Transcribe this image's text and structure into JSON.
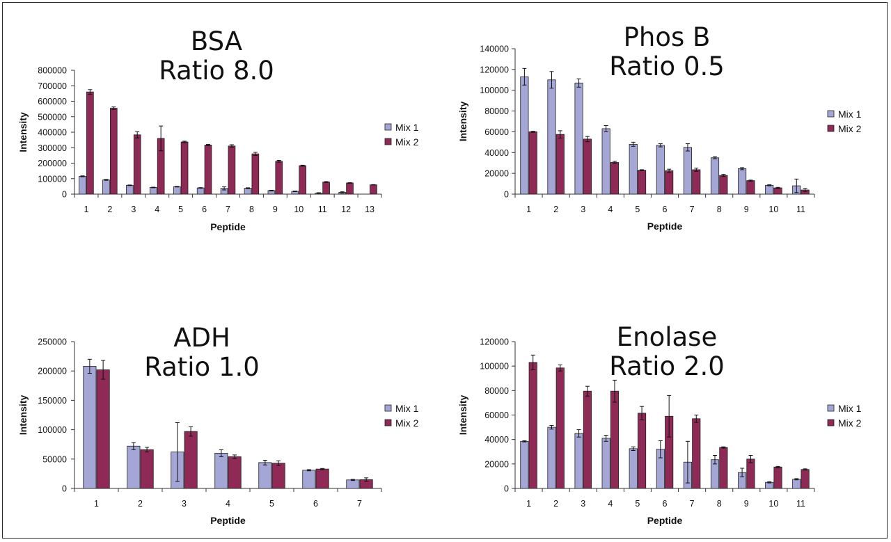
{
  "colors": {
    "mix1_fill": "#a4a6d6",
    "mix2_fill": "#8e2a55",
    "bar_stroke": "#222222",
    "axis": "#333333"
  },
  "chart_data": [
    {
      "type": "bar",
      "title": "BSA",
      "subtitle": "Ratio 8.0",
      "xlabel": "Peptide",
      "ylabel": "Intensity",
      "ylim": [
        0,
        800000
      ],
      "yticks": [
        0,
        100000,
        200000,
        300000,
        400000,
        500000,
        600000,
        700000,
        800000
      ],
      "legend_position": "right",
      "grid": false,
      "categories": [
        "1",
        "2",
        "3",
        "4",
        "5",
        "6",
        "7",
        "8",
        "9",
        "10",
        "11",
        "12",
        "13"
      ],
      "series": [
        {
          "name": "Mix 1",
          "values": [
            115000,
            92000,
            57000,
            43000,
            48000,
            40000,
            37000,
            38000,
            23000,
            18000,
            7000,
            11000,
            0
          ],
          "errors": [
            3000,
            3000,
            2000,
            2000,
            2000,
            2000,
            10000,
            3000,
            2000,
            2000,
            2000,
            4000,
            0
          ]
        },
        {
          "name": "Mix 2",
          "values": [
            660000,
            555000,
            383000,
            360000,
            337000,
            317000,
            311000,
            260000,
            212000,
            184000,
            78000,
            72000,
            60000
          ],
          "errors": [
            15000,
            8000,
            20000,
            80000,
            5000,
            4000,
            8000,
            10000,
            6000,
            3000,
            3000,
            2000,
            1500
          ]
        }
      ]
    },
    {
      "type": "bar",
      "title": "Phos B",
      "subtitle": "Ratio 0.5",
      "xlabel": "Peptide",
      "ylabel": "Intensity",
      "ylim": [
        0,
        140000
      ],
      "yticks": [
        0,
        20000,
        40000,
        60000,
        80000,
        100000,
        120000,
        140000
      ],
      "legend_position": "right",
      "grid": false,
      "categories": [
        "1",
        "2",
        "3",
        "4",
        "5",
        "6",
        "7",
        "8",
        "9",
        "10",
        "11"
      ],
      "series": [
        {
          "name": "Mix 1",
          "values": [
            113000,
            110000,
            107000,
            63000,
            48000,
            47000,
            45000,
            35000,
            24500,
            8500,
            8000
          ],
          "errors": [
            8000,
            8000,
            4000,
            3000,
            2000,
            1500,
            3500,
            1000,
            1000,
            500,
            6500
          ]
        },
        {
          "name": "Mix 2",
          "values": [
            60000,
            57500,
            53000,
            30500,
            23000,
            22500,
            23500,
            18000,
            13000,
            6000,
            4000
          ],
          "errors": [
            500,
            3500,
            2500,
            1000,
            500,
            1500,
            1500,
            1000,
            500,
            500,
            1500
          ]
        }
      ]
    },
    {
      "type": "bar",
      "title": "ADH",
      "subtitle": "Ratio 1.0",
      "xlabel": "Peptide",
      "ylabel": "Intensity",
      "ylim": [
        0,
        250000
      ],
      "yticks": [
        0,
        50000,
        100000,
        150000,
        200000,
        250000
      ],
      "legend_position": "right",
      "grid": false,
      "categories": [
        "1",
        "2",
        "3",
        "4",
        "5",
        "6",
        "7"
      ],
      "series": [
        {
          "name": "Mix 1",
          "values": [
            208000,
            72000,
            62000,
            60000,
            44000,
            31000,
            14500
          ],
          "errors": [
            12000,
            6000,
            50000,
            6000,
            4000,
            1000,
            1000
          ]
        },
        {
          "name": "Mix 2",
          "values": [
            202000,
            66000,
            97000,
            54000,
            43000,
            33000,
            15000
          ],
          "errors": [
            16000,
            4000,
            8000,
            3000,
            4000,
            1000,
            3000
          ]
        }
      ]
    },
    {
      "type": "bar",
      "title": "Enolase",
      "subtitle": "Ratio 2.0",
      "xlabel": "Peptide",
      "ylabel": "Intensity",
      "ylim": [
        0,
        120000
      ],
      "yticks": [
        0,
        20000,
        40000,
        60000,
        80000,
        100000,
        120000
      ],
      "legend_position": "right",
      "grid": false,
      "categories": [
        "1",
        "2",
        "3",
        "4",
        "5",
        "6",
        "7",
        "8",
        "9",
        "10",
        "11"
      ],
      "series": [
        {
          "name": "Mix 1",
          "values": [
            38500,
            50000,
            45000,
            41000,
            32500,
            32000,
            21500,
            23500,
            13000,
            5000,
            7500
          ],
          "errors": [
            500,
            1500,
            3000,
            2500,
            1500,
            7000,
            17000,
            3500,
            3500,
            500,
            500
          ]
        },
        {
          "name": "Mix 2",
          "values": [
            103000,
            98500,
            79500,
            79500,
            61500,
            59000,
            57000,
            33500,
            24000,
            17500,
            15500
          ],
          "errors": [
            6000,
            2500,
            4000,
            9000,
            5500,
            17000,
            3000,
            500,
            3000,
            500,
            500
          ]
        }
      ]
    }
  ]
}
